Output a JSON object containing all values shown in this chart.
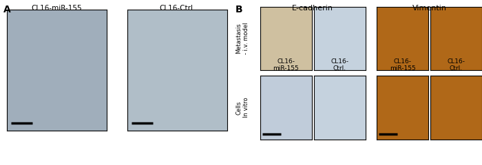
{
  "panel_A_label": "A",
  "panel_B_label": "B",
  "section_title_ecadherin": "E-cadherin",
  "section_title_vimentin": "Vimentin",
  "col_labels_A": [
    "CL16-miR-155",
    "CL16-Ctrl."
  ],
  "col_labels_B_ecad": [
    "CL16-\nmiR-155",
    "CL16-\nCtrl."
  ],
  "col_labels_B_vim": [
    "CL16-\nmiR-155",
    "CL16-\nCtrl."
  ],
  "row_label_top": "Metastasis\n- i.v. model",
  "row_label_bot": "Cells\nIn vitro",
  "bg_color": "#ffffff",
  "cell_micro_color_1": "#a0aebb",
  "cell_micro_color_2": "#b0bec8",
  "ecad_meta_mir155_color": "#cfc0a0",
  "ecad_meta_ctrl_color": "#c5d2de",
  "ecad_invitro_mir155_color": "#c0ccda",
  "ecad_invitro_ctrl_color": "#c5d2de",
  "vim_color": "#b06818",
  "scale_bar_color": "#000000"
}
